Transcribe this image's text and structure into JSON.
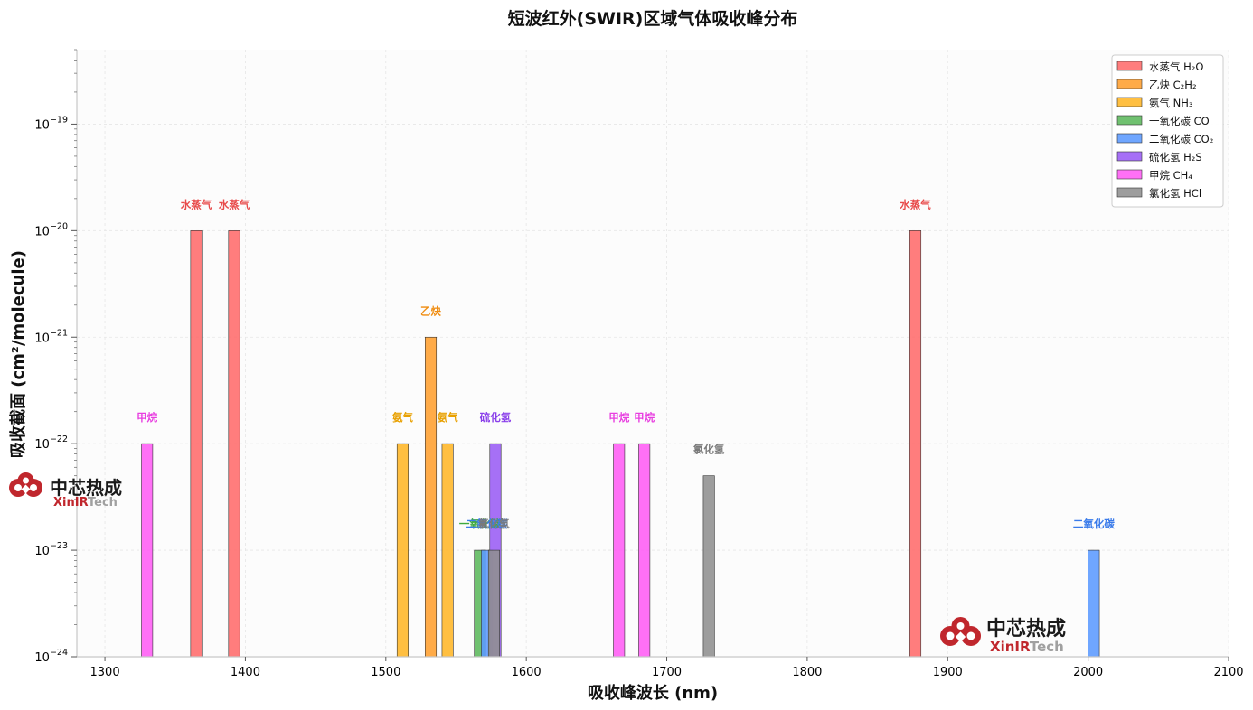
{
  "chart_data": {
    "type": "bar",
    "title": "短波红外(SWIR)区域气体吸收峰分布",
    "xlabel": "吸收峰波长 (nm)",
    "ylabel": "吸收截面 (cm²/molecule)",
    "xlim": [
      1280,
      2100
    ],
    "ylim": [
      1e-24,
      5e-19
    ],
    "yscale": "log",
    "x_ticks": [
      1300,
      1400,
      1500,
      1600,
      1700,
      1800,
      1900,
      2000,
      2100
    ],
    "y_ticks": [
      -24,
      -23,
      -22,
      -21,
      -20,
      -19
    ],
    "grid": true,
    "legend_position": "top-right",
    "series": [
      {
        "name": "水蒸气 H₂O",
        "label": "水蒸气",
        "color": "#ff6b6b",
        "label_color": "#e84a4a",
        "points": [
          {
            "x": 1365,
            "y": 1e-20
          },
          {
            "x": 1392,
            "y": 1e-20
          },
          {
            "x": 1877,
            "y": 1e-20
          }
        ]
      },
      {
        "name": "乙炔 C₂H₂",
        "label": "乙炔",
        "color": "#ff9f2f",
        "label_color": "#ef8c10",
        "points": [
          {
            "x": 1532,
            "y": 1e-21
          }
        ]
      },
      {
        "name": "氨气 NH₃",
        "label": "氨气",
        "color": "#ffb627",
        "label_color": "#e8a000",
        "points": [
          {
            "x": 1512,
            "y": 1e-22
          },
          {
            "x": 1544,
            "y": 1e-22
          }
        ]
      },
      {
        "name": "一氧化碳 CO",
        "label": "一氧化碳",
        "color": "#5cb85c",
        "label_color": "#3fa93f",
        "points": [
          {
            "x": 1567,
            "y": 1e-23
          }
        ]
      },
      {
        "name": "二氧化碳 CO₂",
        "label": "二氧化碳",
        "color": "#5b9aff",
        "label_color": "#3a7bea",
        "points": [
          {
            "x": 1572,
            "y": 1e-23
          },
          {
            "x": 2004,
            "y": 1e-23
          }
        ]
      },
      {
        "name": "硫化氢 H₂S",
        "label": "硫化氢",
        "color": "#9a5cf5",
        "label_color": "#8a3fea",
        "points": [
          {
            "x": 1578,
            "y": 1e-22
          }
        ]
      },
      {
        "name": "甲烷 CH₄",
        "label": "甲烷",
        "color": "#ff5cf5",
        "label_color": "#e83fe0",
        "points": [
          {
            "x": 1330,
            "y": 1e-22
          },
          {
            "x": 1666,
            "y": 1e-22
          },
          {
            "x": 1684,
            "y": 1e-22
          }
        ]
      },
      {
        "name": "氯化氢 HCl",
        "label": "氯化氢",
        "color": "#909090",
        "label_color": "#7a7a7a",
        "points": [
          {
            "x": 1577,
            "y": 1e-23
          },
          {
            "x": 1730,
            "y": 5e-23
          }
        ]
      }
    ]
  },
  "logos": [
    {
      "cn": "中芯热成",
      "en_a": "XinIR",
      "en_b": "Tech"
    },
    {
      "cn": "中芯热成",
      "en_a": "XinIR",
      "en_b": "Tech"
    }
  ],
  "colors": {
    "logo_red": "#c0272d",
    "logo_gray": "#a0a0a0"
  }
}
